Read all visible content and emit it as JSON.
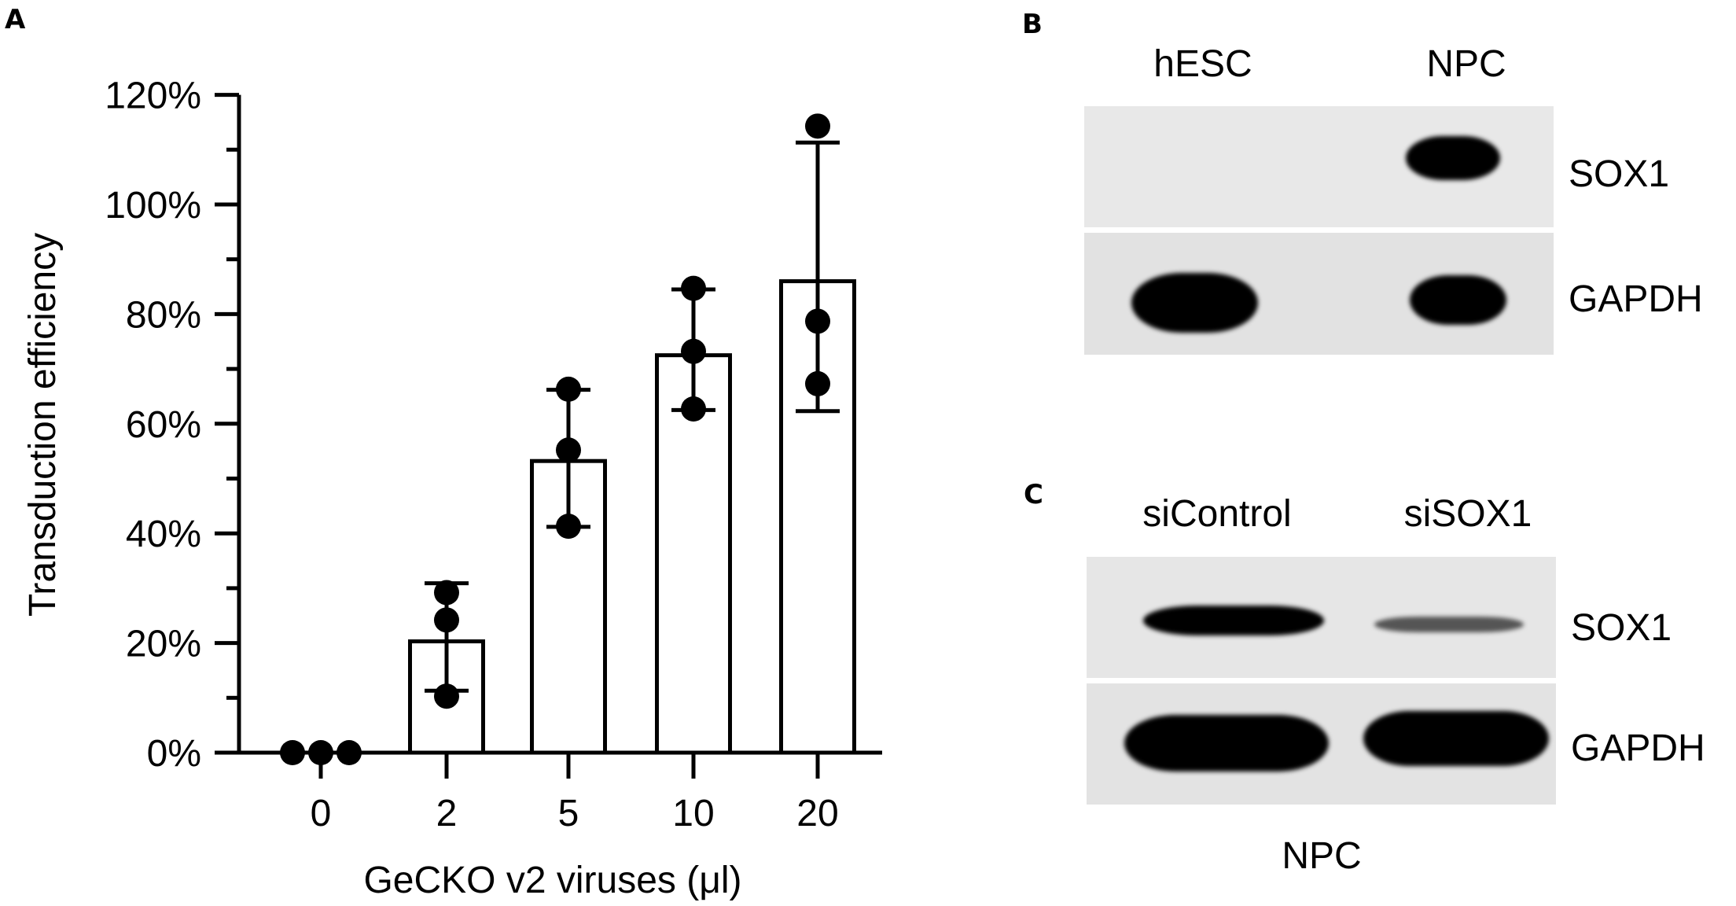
{
  "panels": {
    "A": {
      "letter": "A"
    },
    "B": {
      "letter": "B"
    },
    "C": {
      "letter": "C"
    }
  },
  "chart_data": {
    "type": "bar",
    "title": "",
    "xlabel": "GeCKO v2 viruses (μl)",
    "ylabel": "Transduction efficiency",
    "ylim": [
      0,
      120
    ],
    "yticks": [
      "0%",
      "20%",
      "40%",
      "60%",
      "80%",
      "100%",
      "120%"
    ],
    "grid": false,
    "legend": null,
    "categories": [
      "0",
      "2",
      "5",
      "10",
      "20"
    ],
    "values": [
      0,
      20.3,
      53.2,
      72.5,
      86.0
    ],
    "error_bars_sd": [
      {
        "low": 0,
        "high": 0
      },
      {
        "low": 11.3,
        "high": 30.9
      },
      {
        "low": 41.2,
        "high": 66.2
      },
      {
        "low": 62.5,
        "high": 84.5
      },
      {
        "low": 62.3,
        "high": 111.3
      }
    ],
    "points": [
      [
        0,
        0,
        0
      ],
      [
        29.2,
        24.2,
        10.3
      ],
      [
        66.3,
        55.2,
        41.3
      ],
      [
        84.7,
        73.2,
        62.7
      ],
      [
        114.3,
        78.7,
        67.3
      ]
    ]
  },
  "blot_B": {
    "lanes": [
      "hESC",
      "NPC"
    ],
    "rows": [
      "SOX1",
      "GAPDH"
    ]
  },
  "blot_C": {
    "lanes": [
      "siControl",
      "siSOX1"
    ],
    "rows": [
      "SOX1",
      "GAPDH"
    ],
    "footer": "NPC"
  }
}
